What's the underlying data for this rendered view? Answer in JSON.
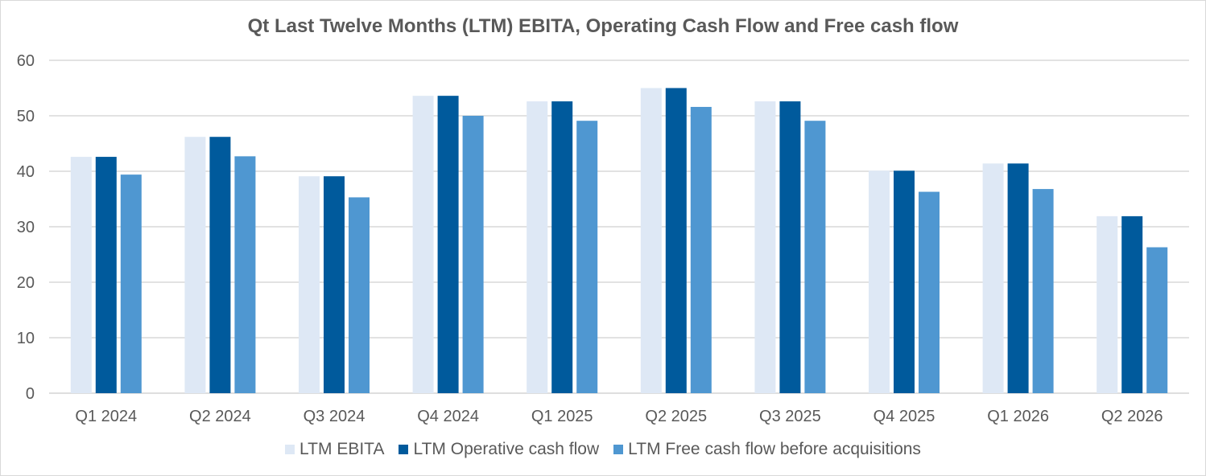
{
  "chart_data": {
    "type": "bar",
    "title": "Qt Last Twelve Months (LTM) EBITA, Operating Cash Flow and Free cash flow",
    "xlabel": "",
    "ylabel": "",
    "ylim": [
      0,
      60
    ],
    "yticks": [
      "0",
      "10",
      "20",
      "30",
      "40",
      "50",
      "60"
    ],
    "grid": true,
    "legend_position": "bottom",
    "categories": [
      "Q1 2024",
      "Q2 2024",
      "Q3 2024",
      "Q4 2024",
      "Q1 2025",
      "Q2 2025",
      "Q3 2025",
      "Q4 2025",
      "Q1 2026",
      "Q2 2026"
    ],
    "series": [
      {
        "name": "LTM EBITA",
        "color": "#dee8f5",
        "values": [
          42.6,
          46.2,
          39.1,
          53.6,
          52.6,
          55.0,
          52.6,
          40.1,
          41.4,
          31.9
        ]
      },
      {
        "name": "LTM Operative cash flow",
        "color": "#005a9c",
        "values": [
          42.6,
          46.2,
          39.1,
          53.6,
          52.6,
          55.0,
          52.6,
          40.1,
          41.4,
          31.9
        ]
      },
      {
        "name": "LTM Free cash flow before acquisitions",
        "color": "#4f97d1",
        "values": [
          39.4,
          42.7,
          35.3,
          50.0,
          49.1,
          51.6,
          49.1,
          36.3,
          36.8,
          26.3
        ]
      }
    ]
  }
}
